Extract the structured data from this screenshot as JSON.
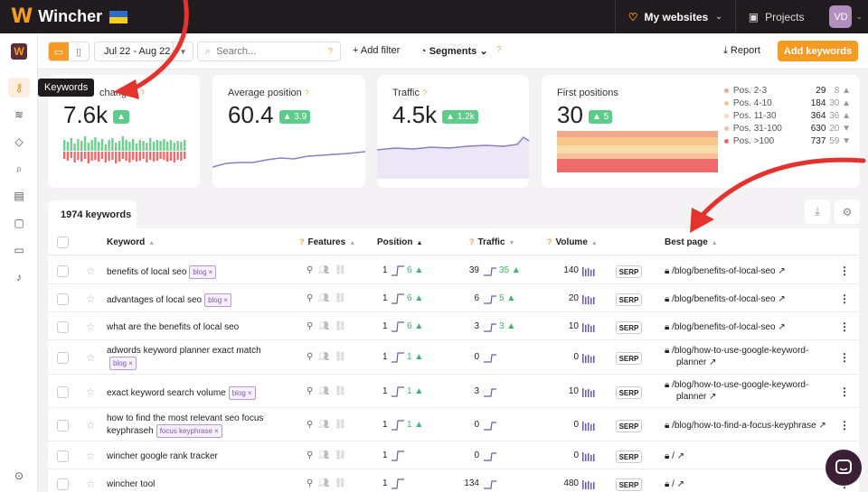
{
  "topbar": {
    "logo_mark": "W",
    "brand": "Wincher",
    "flag_colors": [
      "#2b6ccf",
      "#f7d117"
    ],
    "my_websites": "My websites",
    "projects": "Projects",
    "avatar": "VD"
  },
  "sidebar": {
    "logo_mark": "W",
    "tooltip": "Keywords",
    "items": [
      "key-icon",
      "layers-icon",
      "tags-icon",
      "search-icon",
      "notes-icon",
      "document-icon",
      "report-icon",
      "bell-icon",
      "expand-icon"
    ]
  },
  "toolbar": {
    "date_range": "Jul 22 - Aug 22",
    "search_placeholder": "Search...",
    "add_filter": "+ Add filter",
    "segments": "Segments",
    "report": "Report",
    "add_keywords": "Add keywords"
  },
  "cards": {
    "changes": {
      "title": "changes",
      "value": "7.6k",
      "badge": "▲"
    },
    "avg_position": {
      "title": "Average position",
      "value": "60.4",
      "badge": "▲ 3.9"
    },
    "traffic": {
      "title": "Traffic",
      "value": "4.5k",
      "badge": "▲ 1.2k"
    },
    "first_positions": {
      "title": "First positions",
      "value": "30",
      "badge": "▲ 5",
      "legend": [
        {
          "label": "Pos. 2-3",
          "value": "29",
          "delta": "8 ▲",
          "color": "#f2a98a"
        },
        {
          "label": "Pos. 4-10",
          "value": "184",
          "delta": "30 ▲",
          "color": "#f6c68a"
        },
        {
          "label": "Pos. 11-30",
          "value": "364",
          "delta": "36 ▲",
          "color": "#f8dba8"
        },
        {
          "label": "Pos. 31-100",
          "value": "630",
          "delta": "20 ▼",
          "color": "#f7c09a"
        },
        {
          "label": "Pos. >100",
          "value": "737",
          "delta": "59 ▼",
          "color": "#ef6b6b"
        }
      ]
    }
  },
  "keywords_tab": "1974 keywords",
  "table": {
    "headers": {
      "keyword": "Keyword",
      "features": "Features",
      "position": "Position",
      "traffic": "Traffic",
      "volume": "Volume",
      "best_page": "Best page"
    },
    "rows": [
      {
        "keyword": "benefits of local seo",
        "keyword2": "",
        "tag": "blog",
        "pos": "1",
        "pos_change": "6 ▲",
        "traffic": "39",
        "traffic_change": "35 ▲",
        "volume": "140",
        "serp": "SERP",
        "page": "/blog/benefits-of-local-seo",
        "page2": ""
      },
      {
        "keyword": "advantages of local seo",
        "keyword2": "",
        "tag": "blog",
        "pos": "1",
        "pos_change": "6 ▲",
        "traffic": "6",
        "traffic_change": "5 ▲",
        "volume": "20",
        "serp": "SERP",
        "page": "/blog/benefits-of-local-seo",
        "page2": ""
      },
      {
        "keyword": "what are the benefits of local seo",
        "keyword2": "",
        "tag": "",
        "pos": "1",
        "pos_change": "6 ▲",
        "traffic": "3",
        "traffic_change": "3 ▲",
        "volume": "10",
        "serp": "SERP",
        "page": "/blog/benefits-of-local-seo",
        "page2": ""
      },
      {
        "keyword": "adwords keyword planner exact match",
        "keyword2": "",
        "tag": "blog",
        "pos": "1",
        "pos_change": "1 ▲",
        "traffic": "0",
        "traffic_change": "",
        "volume": "0",
        "serp": "SERP",
        "page": "/blog/how-to-use-google-keyword-",
        "page2": "planner"
      },
      {
        "keyword": "exact keyword search volume",
        "keyword2": "",
        "tag": "blog",
        "pos": "1",
        "pos_change": "1 ▲",
        "traffic": "3",
        "traffic_change": "",
        "volume": "10",
        "serp": "SERP",
        "page": "/blog/how-to-use-google-keyword-",
        "page2": "planner"
      },
      {
        "keyword": "how to find the most relevant seo focus",
        "keyword2": "keyphraseh",
        "tag": "focus keyphrase",
        "pos": "1",
        "pos_change": "1 ▲",
        "traffic": "0",
        "traffic_change": "",
        "volume": "0",
        "serp": "SERP",
        "page": "/blog/how-to-find-a-focus-keyphrase",
        "page2": ""
      },
      {
        "keyword": "wincher google rank tracker",
        "keyword2": "",
        "tag": "",
        "pos": "1",
        "pos_change": "",
        "traffic": "0",
        "traffic_change": "",
        "volume": "0",
        "serp": "SERP",
        "page": "/",
        "page2": ""
      },
      {
        "keyword": "wincher tool",
        "keyword2": "",
        "tag": "",
        "pos": "1",
        "pos_change": "",
        "traffic": "134",
        "traffic_change": "",
        "volume": "480",
        "serp": "SERP",
        "page": "/",
        "page2": ""
      }
    ]
  }
}
